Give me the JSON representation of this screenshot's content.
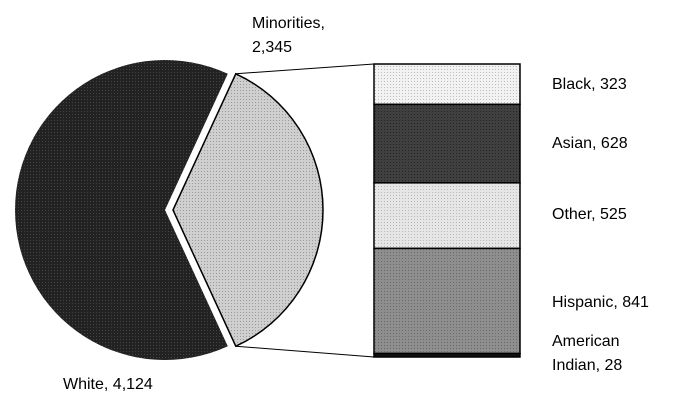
{
  "chart_data": {
    "type": "pie",
    "pie": {
      "slices": [
        {
          "label": "White, 4,124",
          "name": "White",
          "value": 4124,
          "color": "#1c1c1c"
        },
        {
          "label": "Minorities, 2,345",
          "name": "Minorities",
          "value": 2345,
          "color": "#c8c8c8",
          "exploded": true
        }
      ]
    },
    "breakdown": {
      "type": "stacked-bar",
      "of": "Minorities",
      "segments": [
        {
          "label": "Black, 323",
          "name": "Black",
          "value": 323,
          "color": "#f0f0f0"
        },
        {
          "label": "Asian, 628",
          "name": "Asian",
          "value": 628,
          "color": "#3a3a3a"
        },
        {
          "label": "Other, 525",
          "name": "Other",
          "value": 525,
          "color": "#e2e2e2"
        },
        {
          "label": "Hispanic, 841",
          "name": "Hispanic",
          "value": 841,
          "color": "#8a8a8a"
        },
        {
          "label": "American Indian, 28",
          "name": "American Indian",
          "value": 28,
          "color": "#111111"
        }
      ]
    },
    "labels": {
      "minorities_line1": "Minorities,",
      "minorities_line2": "2,345",
      "white": "White, 4,124",
      "black": "Black, 323",
      "asian": "Asian, 628",
      "other": "Other, 525",
      "hispanic": "Hispanic, 841",
      "american_indian_line1": "American",
      "american_indian_line2": "Indian, 28"
    }
  }
}
